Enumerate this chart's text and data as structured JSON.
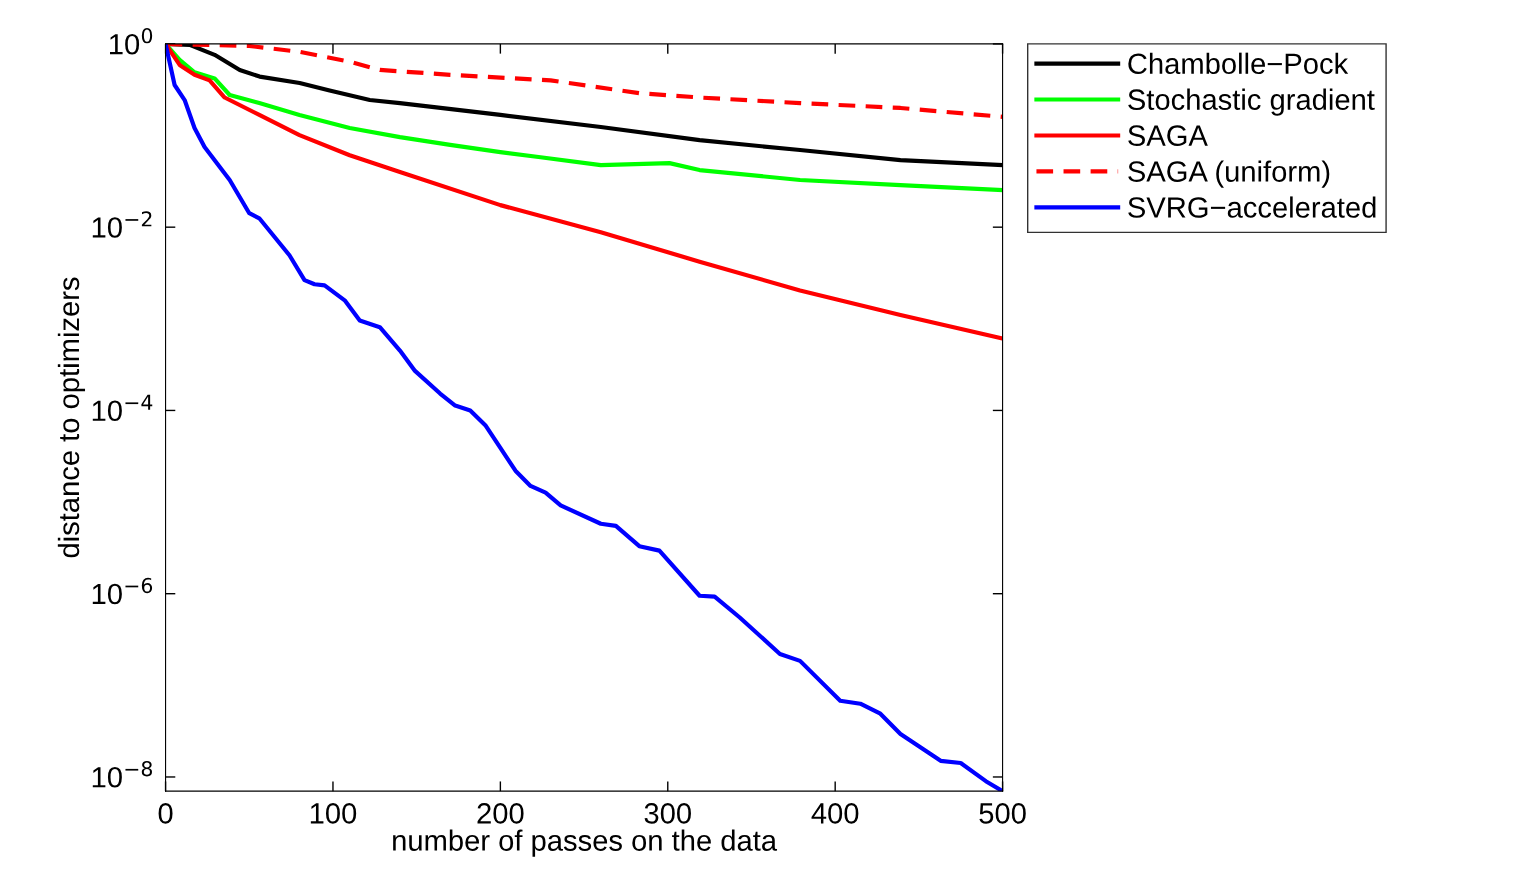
{
  "chart_data": {
    "type": "line",
    "xlabel": "number of passes on the data",
    "ylabel": "distance to optimizers",
    "log": "y",
    "grid": false,
    "legend": "right",
    "marker": "none",
    "xlim": [
      0,
      500
    ],
    "xticks": [
      0,
      100,
      200,
      300,
      400,
      500
    ],
    "ylim": [
      7e-09,
      1
    ],
    "yticks": [
      {
        "value": 1,
        "label": "10$^{0}$"
      },
      {
        "value": 0.01,
        "label": "10$^{−2}$"
      },
      {
        "value": 0.0001,
        "label": "10$^{−4}$"
      },
      {
        "value": 1e-06,
        "label": "10$^{−6}$"
      },
      {
        "value": 1e-08,
        "label": "10$^{−8}$"
      }
    ],
    "series": [
      {
        "name": "Chambolle−Pock",
        "color": "#000000",
        "line_style": "solid",
        "x": [
          0,
          14.4,
          29.3,
          44.3,
          56.2,
          80.1,
          98,
          122,
          140,
          200,
          260,
          319,
          379,
          439,
          500
        ],
        "values": [
          1,
          0.975,
          0.76,
          0.52,
          0.44,
          0.375,
          0.31,
          0.244,
          0.226,
          0.168,
          0.124,
          0.089,
          0.0695,
          0.054,
          0.0476
        ]
      },
      {
        "name": "Stochastic gradient",
        "color": "#00ff00",
        "line_style": "solid",
        "x": [
          0,
          8.4,
          17.3,
          29.3,
          38.3,
          56,
          80,
          110,
          140,
          170,
          200,
          224,
          260,
          301,
          319,
          379,
          439,
          500
        ],
        "values": [
          1,
          0.67,
          0.49,
          0.42,
          0.277,
          0.226,
          0.168,
          0.121,
          0.096,
          0.079,
          0.066,
          0.058,
          0.0476,
          0.05,
          0.042,
          0.0327,
          0.0288,
          0.0254
        ]
      },
      {
        "name": "SAGA",
        "color": "#ff0000",
        "line_style": "solid",
        "x": [
          0,
          8.4,
          17.3,
          26.3,
          35.3,
          56,
          80,
          110,
          140,
          200,
          260,
          319,
          379,
          439,
          500
        ],
        "values": [
          1,
          0.59,
          0.46,
          0.4,
          0.26,
          0.168,
          0.101,
          0.061,
          0.04,
          0.0174,
          0.0088,
          0.0042,
          0.00204,
          0.0011,
          0.00061
        ]
      },
      {
        "name": "SAGA (uniform)",
        "color": "#ff0000",
        "line_style": "dashed",
        "x": [
          0,
          50,
          80,
          110,
          128,
          170,
          230,
          283,
          319,
          379,
          439,
          500
        ],
        "values": [
          1,
          0.95,
          0.82,
          0.64,
          0.52,
          0.46,
          0.4,
          0.29,
          0.26,
          0.226,
          0.2,
          0.16
        ]
      },
      {
        "name": "SVRG−accelerated",
        "color": "#0000ff",
        "line_style": "solid",
        "x": [
          0,
          5.4,
          11.4,
          17.3,
          23.3,
          38.3,
          50,
          56,
          74,
          83,
          89,
          95,
          107,
          116,
          128,
          140,
          149,
          164,
          173,
          182,
          191,
          200,
          209,
          218,
          227,
          236,
          260,
          269,
          283,
          295,
          319,
          328,
          343,
          367,
          379,
          403,
          415,
          427,
          439,
          463,
          475,
          490,
          500
        ],
        "values": [
          1,
          0.356,
          0.244,
          0.121,
          0.0748,
          0.0327,
          0.0142,
          0.0125,
          0.00494,
          0.00264,
          0.00238,
          0.00232,
          0.00159,
          0.00096,
          0.00081,
          0.00045,
          0.00027,
          0.000153,
          0.000113,
          0.0001,
          6.9e-05,
          3.9e-05,
          2.2e-05,
          1.5e-05,
          1.27e-05,
          9.2e-06,
          5.8e-06,
          5.5e-06,
          3.3e-06,
          2.95e-06,
          9.5e-07,
          9.3e-07,
          5.5e-07,
          2.2e-07,
          1.85e-07,
          6.8e-08,
          6.3e-08,
          4.9e-08,
          2.95e-08,
          1.5e-08,
          1.42e-08,
          9e-09,
          7e-09
        ]
      }
    ]
  }
}
